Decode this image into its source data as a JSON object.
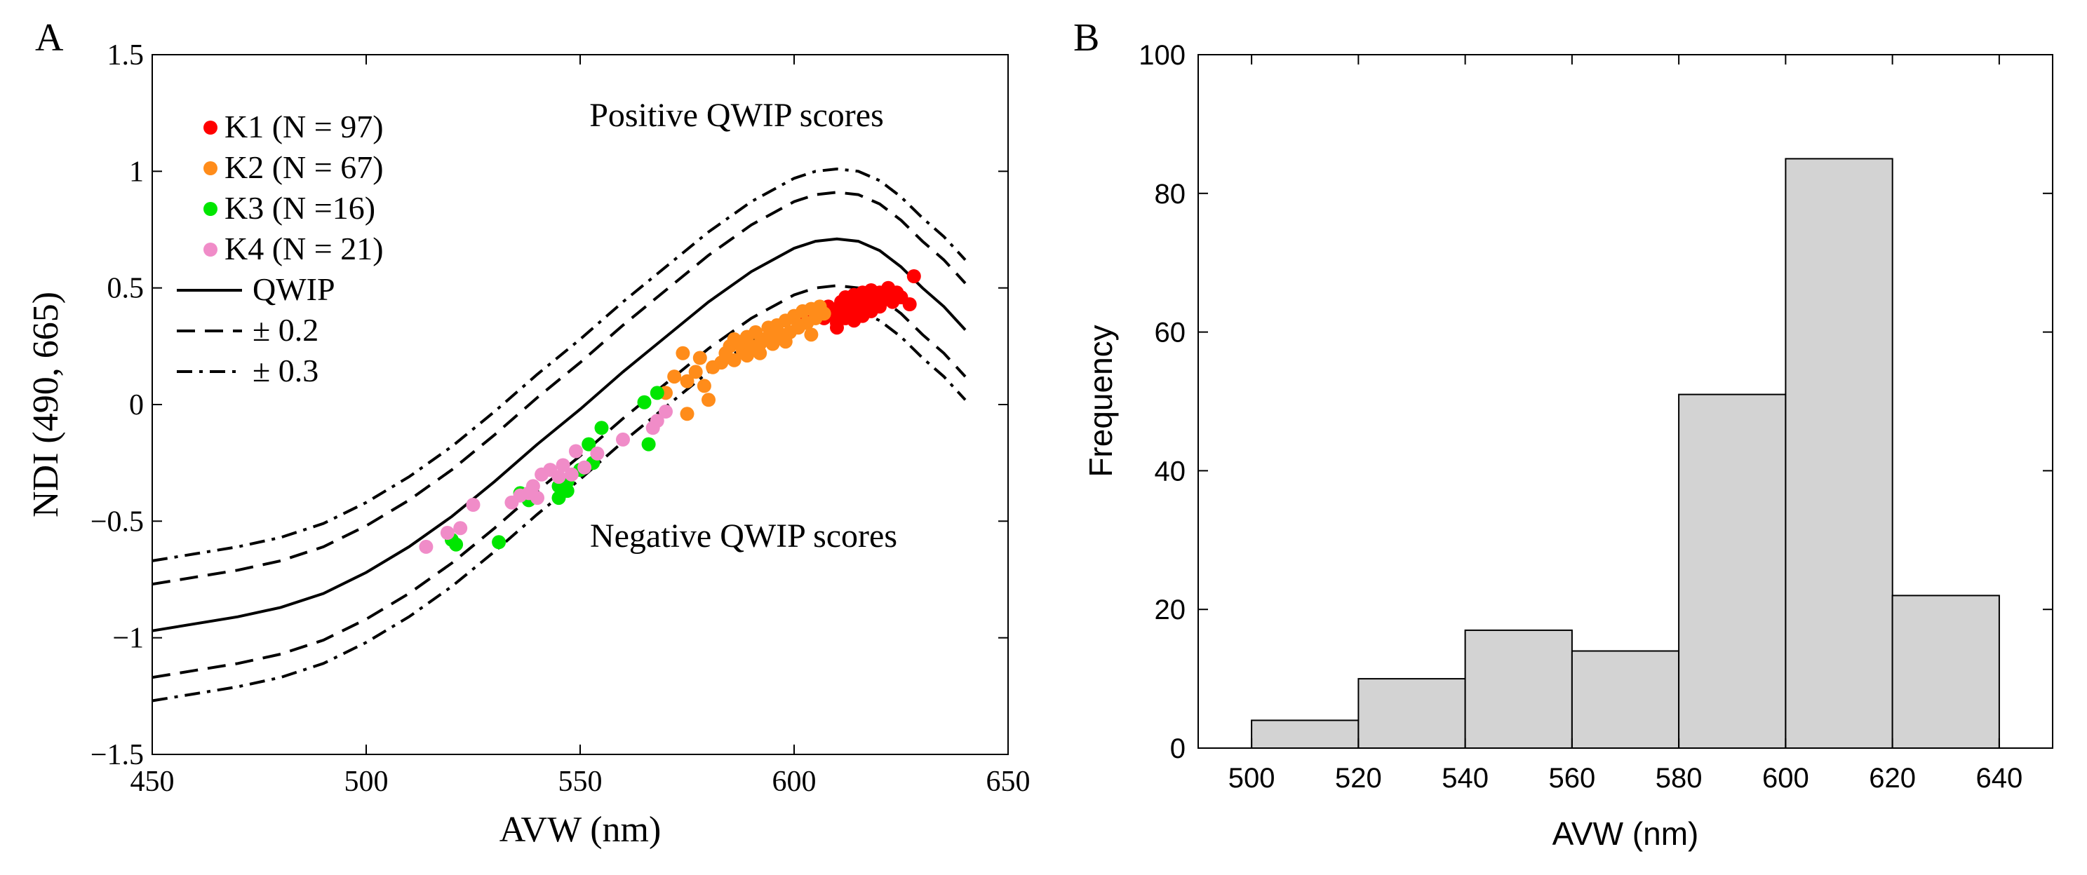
{
  "chart_data": [
    {
      "panel_label": "A",
      "type": "scatter",
      "xlabel": "AVW (nm)",
      "ylabel": "NDI (490, 665)",
      "xlim": [
        450,
        650
      ],
      "ylim": [
        -1.5,
        1.5
      ],
      "xticks": [
        450,
        500,
        550,
        600,
        650
      ],
      "yticks": [
        -1.5,
        -1,
        -0.5,
        0,
        0.5,
        1,
        1.5
      ],
      "xtick_labels": [
        "450",
        "500",
        "550",
        "600",
        "650"
      ],
      "ytick_labels": [
        "−1.5",
        "−1",
        "−0.5",
        "0",
        "0.5",
        "1",
        "1.5"
      ],
      "grid": false,
      "legend_position": "top-left",
      "annotations": {
        "positive": "Positive QWIP scores",
        "negative": "Negative QWIP scores"
      },
      "legend": [
        {
          "label": "K1 (N = 97)",
          "color": "#ff0000",
          "kind": "dot"
        },
        {
          "label": "K2 (N = 67)",
          "color": "#ff8c1a",
          "kind": "dot"
        },
        {
          "label": "K3 (N =16)",
          "color": "#00e600",
          "kind": "dot"
        },
        {
          "label": "K4 (N = 21)",
          "color": "#f08cc8",
          "kind": "dot"
        },
        {
          "label": "QWIP",
          "kind": "solid"
        },
        {
          "label": "± 0.2",
          "kind": "dashed"
        },
        {
          "label": "± 0.3",
          "kind": "dashdot"
        }
      ],
      "curves": [
        {
          "label": "QWIP",
          "style": "solid",
          "x": [
            450,
            460,
            470,
            480,
            490,
            500,
            510,
            520,
            530,
            540,
            550,
            560,
            570,
            580,
            590,
            600,
            605,
            610,
            615,
            620,
            625,
            630,
            635,
            640
          ],
          "y": [
            -0.97,
            -0.94,
            -0.91,
            -0.87,
            -0.81,
            -0.72,
            -0.61,
            -0.48,
            -0.33,
            -0.17,
            -0.02,
            0.14,
            0.29,
            0.44,
            0.57,
            0.67,
            0.7,
            0.71,
            0.7,
            0.66,
            0.59,
            0.5,
            0.42,
            0.32
          ]
        },
        {
          "label": "+0.2",
          "style": "dashed",
          "x": [
            450,
            460,
            470,
            480,
            490,
            500,
            510,
            520,
            530,
            540,
            550,
            560,
            570,
            580,
            590,
            600,
            605,
            610,
            615,
            620,
            625,
            630,
            635,
            640
          ],
          "y": [
            -0.77,
            -0.74,
            -0.71,
            -0.67,
            -0.61,
            -0.52,
            -0.41,
            -0.28,
            -0.13,
            0.03,
            0.18,
            0.34,
            0.49,
            0.64,
            0.77,
            0.87,
            0.9,
            0.91,
            0.9,
            0.86,
            0.79,
            0.7,
            0.62,
            0.52
          ]
        },
        {
          "label": "-0.2",
          "style": "dashed",
          "x": [
            450,
            460,
            470,
            480,
            490,
            500,
            510,
            520,
            530,
            540,
            550,
            560,
            570,
            580,
            590,
            600,
            605,
            610,
            615,
            620,
            625,
            630,
            635,
            640
          ],
          "y": [
            -1.17,
            -1.14,
            -1.11,
            -1.07,
            -1.01,
            -0.92,
            -0.81,
            -0.68,
            -0.53,
            -0.37,
            -0.22,
            -0.06,
            0.09,
            0.24,
            0.37,
            0.47,
            0.5,
            0.51,
            0.5,
            0.46,
            0.39,
            0.3,
            0.22,
            0.12
          ]
        },
        {
          "label": "+0.3",
          "style": "dashdot",
          "x": [
            450,
            460,
            470,
            480,
            490,
            500,
            510,
            520,
            530,
            540,
            550,
            560,
            570,
            580,
            590,
            600,
            605,
            610,
            615,
            620,
            625,
            630,
            635,
            640
          ],
          "y": [
            -0.67,
            -0.64,
            -0.61,
            -0.57,
            -0.51,
            -0.42,
            -0.31,
            -0.18,
            -0.03,
            0.13,
            0.28,
            0.44,
            0.59,
            0.74,
            0.87,
            0.97,
            1.0,
            1.01,
            1.0,
            0.96,
            0.89,
            0.8,
            0.72,
            0.62
          ]
        },
        {
          "label": "-0.3",
          "style": "dashdot",
          "x": [
            450,
            460,
            470,
            480,
            490,
            500,
            510,
            520,
            530,
            540,
            550,
            560,
            570,
            580,
            590,
            600,
            605,
            610,
            615,
            620,
            625,
            630,
            635,
            640
          ],
          "y": [
            -1.27,
            -1.24,
            -1.21,
            -1.17,
            -1.11,
            -1.02,
            -0.91,
            -0.78,
            -0.63,
            -0.47,
            -0.32,
            -0.16,
            -0.01,
            0.14,
            0.27,
            0.37,
            0.4,
            0.41,
            0.4,
            0.36,
            0.29,
            0.2,
            0.12,
            0.02
          ]
        }
      ],
      "series": [
        {
          "name": "K1 (N = 97)",
          "color": "#ff0000",
          "x": [
            603,
            605,
            606,
            607,
            608,
            609,
            610,
            610,
            611,
            612,
            612,
            613,
            613,
            614,
            614,
            615,
            615,
            616,
            616,
            617,
            617,
            618,
            618,
            619,
            620,
            620,
            621,
            622,
            622,
            623,
            624,
            625,
            627,
            628,
            610,
            612,
            614,
            616,
            618
          ],
          "y": [
            0.36,
            0.38,
            0.4,
            0.37,
            0.42,
            0.39,
            0.41,
            0.35,
            0.44,
            0.4,
            0.46,
            0.38,
            0.43,
            0.41,
            0.47,
            0.39,
            0.44,
            0.42,
            0.48,
            0.4,
            0.45,
            0.43,
            0.49,
            0.46,
            0.42,
            0.48,
            0.45,
            0.47,
            0.5,
            0.44,
            0.48,
            0.46,
            0.43,
            0.55,
            0.33,
            0.37,
            0.36,
            0.38,
            0.4
          ]
        },
        {
          "name": "K2 (N = 67)",
          "color": "#ff8c1a",
          "x": [
            570,
            572,
            574,
            575,
            577,
            578,
            580,
            581,
            583,
            584,
            585,
            586,
            587,
            588,
            589,
            590,
            591,
            592,
            593,
            594,
            595,
            596,
            597,
            598,
            599,
            600,
            601,
            602,
            603,
            604,
            605,
            606,
            607,
            575,
            579,
            586,
            589,
            592,
            595,
            598,
            601,
            604
          ],
          "y": [
            0.05,
            0.12,
            0.22,
            -0.04,
            0.14,
            0.2,
            0.02,
            0.16,
            0.18,
            0.22,
            0.25,
            0.19,
            0.27,
            0.23,
            0.29,
            0.25,
            0.31,
            0.22,
            0.28,
            0.33,
            0.26,
            0.34,
            0.3,
            0.36,
            0.31,
            0.38,
            0.34,
            0.4,
            0.35,
            0.41,
            0.37,
            0.42,
            0.39,
            0.1,
            0.08,
            0.28,
            0.21,
            0.26,
            0.3,
            0.27,
            0.33,
            0.3
          ]
        },
        {
          "name": "K3 (N =16)",
          "color": "#00e600",
          "x": [
            521,
            531,
            536,
            538,
            545,
            547,
            552,
            553,
            555,
            565,
            566,
            568,
            547,
            550,
            545,
            520
          ],
          "y": [
            -0.6,
            -0.59,
            -0.38,
            -0.41,
            -0.35,
            -0.37,
            -0.17,
            -0.25,
            -0.1,
            0.01,
            -0.17,
            0.05,
            -0.33,
            -0.28,
            -0.4,
            -0.58
          ]
        },
        {
          "name": "K4 (N = 21)",
          "color": "#f08cc8",
          "x": [
            514,
            519,
            522,
            525,
            534,
            536,
            538,
            539,
            541,
            543,
            545,
            546,
            548,
            549,
            551,
            554,
            560,
            567,
            568,
            570,
            540
          ],
          "y": [
            -0.61,
            -0.55,
            -0.53,
            -0.43,
            -0.42,
            -0.39,
            -0.38,
            -0.35,
            -0.3,
            -0.28,
            -0.31,
            -0.26,
            -0.3,
            -0.2,
            -0.27,
            -0.21,
            -0.15,
            -0.1,
            -0.07,
            -0.03,
            -0.4
          ]
        }
      ]
    },
    {
      "panel_label": "B",
      "type": "bar",
      "xlabel": "AVW (nm)",
      "ylabel": "Frequency",
      "xlim": [
        490,
        650
      ],
      "ylim": [
        0,
        100
      ],
      "xticks": [
        500,
        520,
        540,
        560,
        580,
        600,
        620,
        640
      ],
      "yticks": [
        0,
        20,
        40,
        60,
        80,
        100
      ],
      "xtick_labels": [
        "500",
        "520",
        "540",
        "560",
        "580",
        "600",
        "620",
        "640"
      ],
      "ytick_labels": [
        "0",
        "20",
        "40",
        "60",
        "80",
        "100"
      ],
      "grid": false,
      "bin_edges": [
        500,
        520,
        540,
        560,
        580,
        600,
        620,
        640
      ],
      "values": [
        4,
        10,
        17,
        14,
        51,
        85,
        22
      ],
      "bar_color": "#d3d3d3"
    }
  ]
}
